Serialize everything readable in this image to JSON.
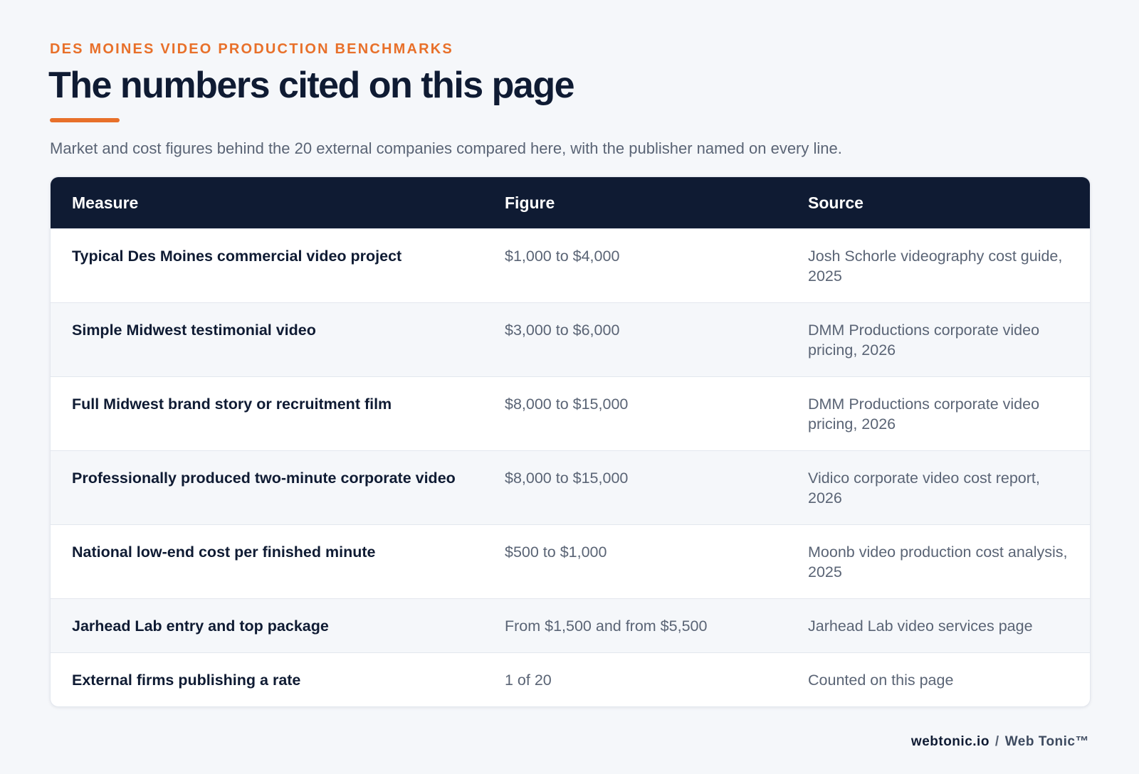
{
  "header": {
    "eyebrow": "DES MOINES VIDEO PRODUCTION BENCHMARKS",
    "title": "The numbers cited on this page",
    "subtitle": "Market and cost figures behind the 20 external companies compared here, with the publisher named on every line."
  },
  "table": {
    "columns": [
      "Measure",
      "Figure",
      "Source"
    ],
    "rows": [
      [
        "Typical Des Moines commercial video project",
        "$1,000 to $4,000",
        "Josh Schorle videography cost guide, 2025"
      ],
      [
        "Simple Midwest testimonial video",
        "$3,000 to $6,000",
        "DMM Productions corporate video pricing, 2026"
      ],
      [
        "Full Midwest brand story or recruitment film",
        "$8,000 to $15,000",
        "DMM Productions corporate video pricing, 2026"
      ],
      [
        "Professionally produced two-minute corporate video",
        "$8,000 to $15,000",
        "Vidico corporate video cost report, 2026"
      ],
      [
        "National low-end cost per finished minute",
        "$500 to $1,000",
        "Moonb video production cost analysis, 2025"
      ],
      [
        "Jarhead Lab entry and top package",
        "From $1,500 and from $5,500",
        "Jarhead Lab video services page"
      ],
      [
        "External firms publishing a rate",
        "1 of 20",
        "Counted on this page"
      ]
    ]
  },
  "footer": {
    "domain": "webtonic.io",
    "separator": "/",
    "brand": "Web Tonic™"
  }
}
